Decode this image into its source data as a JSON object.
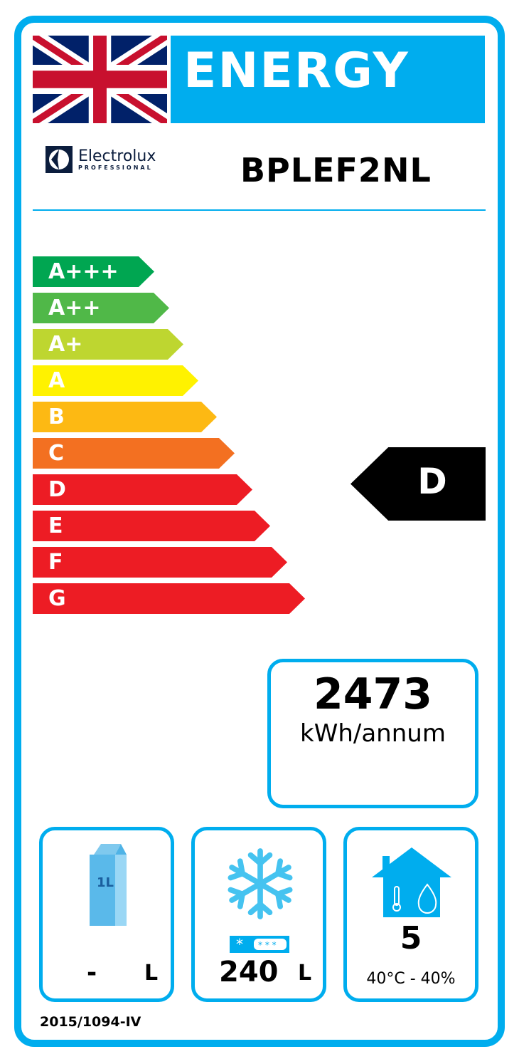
{
  "header": {
    "title": "ENERGY",
    "flag": "uk-flag",
    "brand": "Electrolux",
    "brand_sub": "PROFESSIONAL",
    "model": "BPLEF2NL"
  },
  "scale": [
    {
      "label": "A+++",
      "color": "#00a651"
    },
    {
      "label": "A++",
      "color": "#50b848"
    },
    {
      "label": "A+",
      "color": "#bed630"
    },
    {
      "label": "A",
      "color": "#fff200"
    },
    {
      "label": "B",
      "color": "#fdb913"
    },
    {
      "label": "C",
      "color": "#f37021"
    },
    {
      "label": "D",
      "color": "#ed1c24"
    },
    {
      "label": "E",
      "color": "#ed1c24"
    },
    {
      "label": "F",
      "color": "#ed1c24"
    },
    {
      "label": "G",
      "color": "#ed1c24"
    }
  ],
  "rating": "D",
  "consumption": {
    "value": "2473",
    "unit": "kWh/annum"
  },
  "fresh": {
    "icon": "milk-carton-icon",
    "carton_label": "1L",
    "value": "-",
    "unit": "L"
  },
  "frozen": {
    "icon": "snowflake-icon",
    "value": "240",
    "unit": "L"
  },
  "climate": {
    "icon": "house-climate-icon",
    "class": "5",
    "conditions": "40°C - 40%"
  },
  "regulation": "2015/1094-IV",
  "colors": {
    "accent": "#00adee"
  }
}
